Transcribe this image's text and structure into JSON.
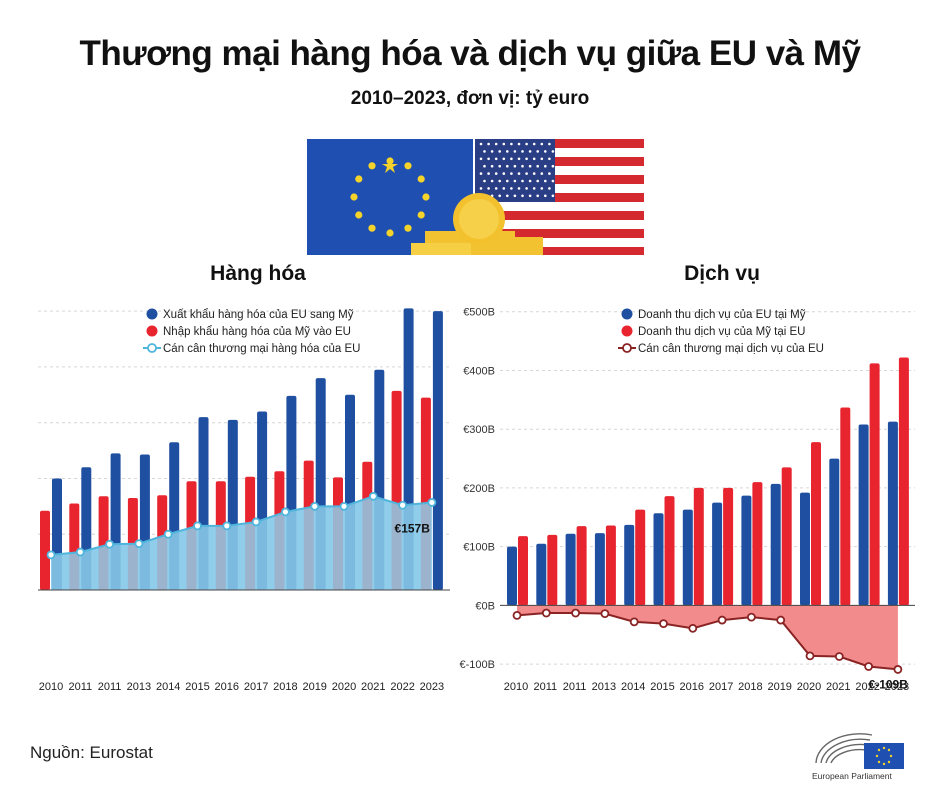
{
  "header": {
    "title": "Thương mại hàng hóa và dịch vụ giữa EU và Mỹ",
    "subtitle": "2010–2023, đơn vị: tỷ euro"
  },
  "footer": {
    "source": "Nguồn: Eurostat",
    "logo_text": "European Parliament"
  },
  "colors": {
    "eu_blue": "#1f4fa0",
    "us_red": "#e8242f",
    "goods_balance_fill": "#8ecdea",
    "goods_balance_line": "#4fb5dc",
    "services_balance_fill": "#f28b8b",
    "services_balance_line": "#8a2323"
  },
  "chart_data": [
    {
      "type": "bar",
      "title": "Hàng hóa",
      "categories": [
        "2010",
        "2011",
        "2011",
        "2013",
        "2014",
        "2015",
        "2016",
        "2017",
        "2018",
        "2019",
        "2020",
        "2021",
        "2022",
        "2023"
      ],
      "series": [
        {
          "name": "Xuất khẩu hàng hóa của EU sang Mỹ",
          "kind": "bar",
          "color": "#1f4fa0",
          "values": [
            200,
            220,
            245,
            243,
            265,
            310,
            305,
            320,
            348,
            380,
            350,
            395,
            505,
            500
          ]
        },
        {
          "name": "Nhập khẩu hàng hóa của Mỹ vào EU",
          "kind": "bar",
          "color": "#e8242f",
          "values": [
            142,
            155,
            168,
            165,
            170,
            195,
            195,
            203,
            213,
            232,
            202,
            230,
            357,
            345
          ]
        },
        {
          "name": "Cán cân thương mại hàng hóa của EU",
          "kind": "area-line",
          "color": "#4fb5dc",
          "values": [
            63,
            68,
            82,
            83,
            100,
            115,
            115,
            122,
            140,
            150,
            150,
            168,
            152,
            157
          ]
        }
      ],
      "annotation": "€157B",
      "ylim": [
        0,
        520
      ]
    },
    {
      "type": "bar",
      "title": "Dịch vụ",
      "categories": [
        "2010",
        "2011",
        "2011",
        "2013",
        "2014",
        "2015",
        "2016",
        "2017",
        "2018",
        "2019",
        "2020",
        "2021",
        "2022",
        "2023"
      ],
      "y_ticks": [
        "€500B",
        "€400B",
        "€300B",
        "€200B",
        "€100B",
        "€0B",
        "€-100B"
      ],
      "series": [
        {
          "name": "Doanh thu dịch vụ của EU tại Mỹ",
          "kind": "bar",
          "color": "#1f4fa0",
          "values": [
            100,
            105,
            122,
            123,
            137,
            157,
            163,
            175,
            187,
            207,
            192,
            250,
            308,
            313
          ]
        },
        {
          "name": "Doanh thu dịch vụ của Mỹ tại EU",
          "kind": "bar",
          "color": "#e8242f",
          "values": [
            118,
            120,
            135,
            136,
            163,
            186,
            200,
            200,
            210,
            235,
            278,
            337,
            412,
            422
          ]
        },
        {
          "name": "Cán cân thương mại dịch vụ của EU",
          "kind": "area-line",
          "color": "#8a2323",
          "values": [
            -17,
            -13,
            -13,
            -14,
            -28,
            -31,
            -39,
            -25,
            -20,
            -25,
            -86,
            -87,
            -104,
            -109
          ]
        }
      ],
      "annotation": "€-109B",
      "ylim": [
        -110,
        520
      ]
    }
  ]
}
